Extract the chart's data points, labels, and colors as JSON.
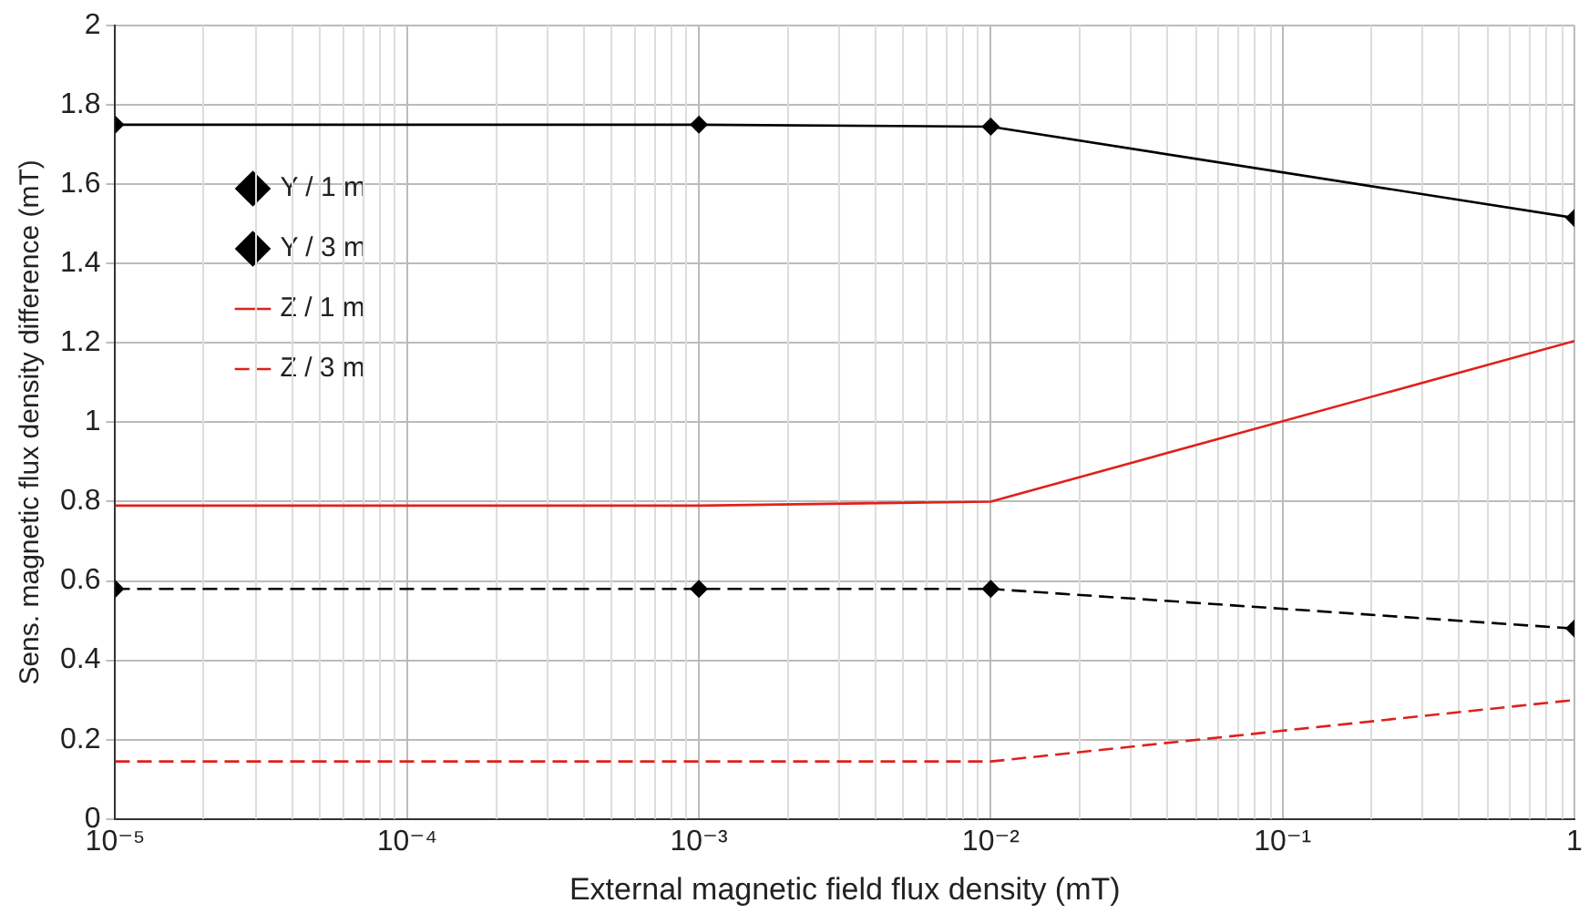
{
  "chart_data": {
    "type": "line",
    "xlabel": "External magnetic field flux density (mT)",
    "ylabel": "Sens. magnetic flux density difference (mT)",
    "x": [
      1e-05,
      0.001,
      0.01,
      1
    ],
    "series": [
      {
        "name": "Y / 1 m",
        "color": "#000000",
        "values": [
          1.75,
          1.75,
          1.745,
          1.515
        ],
        "marker": "diamond",
        "line_style": "solid"
      },
      {
        "name": "Y / 3 m",
        "color": "#000000",
        "values": [
          0.58,
          0.58,
          0.58,
          0.48
        ],
        "marker": "diamond",
        "line_style": "dashed"
      },
      {
        "name": "Z / 1 m",
        "color": "#e0201b",
        "values": [
          0.79,
          0.79,
          0.8,
          1.205
        ],
        "marker": "none",
        "line_style": "solid"
      },
      {
        "name": "Z / 3 m",
        "color": "#e0201b",
        "values": [
          0.145,
          0.145,
          0.145,
          0.3
        ],
        "marker": "none",
        "line_style": "dashed"
      }
    ],
    "log": "x",
    "xlim": [
      1e-05,
      1
    ],
    "xticks": [
      {
        "value": 1e-05,
        "label": "10⁻⁵"
      },
      {
        "value": 0.0001,
        "label": "10⁻⁴"
      },
      {
        "value": 0.001,
        "label": "10⁻³"
      },
      {
        "value": 0.01,
        "label": "10⁻²"
      },
      {
        "value": 0.1,
        "label": "10⁻¹"
      },
      1
    ],
    "ylim": [
      0,
      2
    ],
    "yticks": [
      0,
      0.2,
      0.4,
      0.6,
      0.8,
      1,
      1.2,
      1.4,
      1.6,
      1.8,
      2
    ],
    "grid": true,
    "legend": "top left"
  }
}
